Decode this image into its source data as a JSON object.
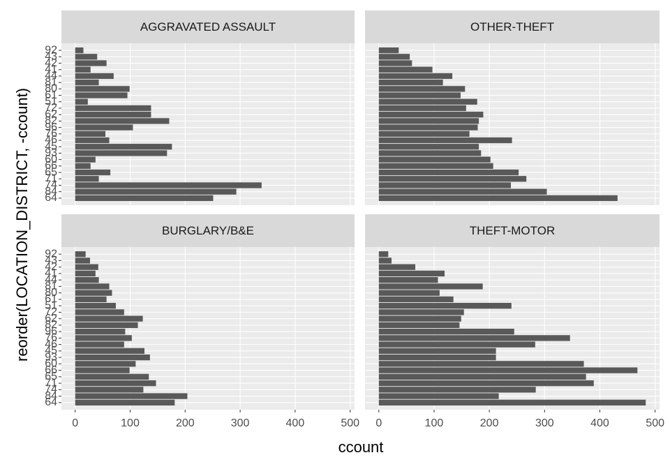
{
  "chart_data": {
    "type": "bar",
    "orientation": "horizontal",
    "x_label": "ccount",
    "y_label": "reorder(LOCATION_DISTRICT, -ccount)",
    "categories": [
      "64",
      "84",
      "74",
      "71",
      "65",
      "66",
      "60",
      "93",
      "45",
      "46",
      "76",
      "96",
      "82",
      "62",
      "72",
      "51",
      "61",
      "80",
      "81",
      "44",
      "41",
      "42",
      "43",
      "92"
    ],
    "color": "#595959",
    "grid": true,
    "xlim": [
      -25,
      508
    ],
    "xticks": [
      0,
      100,
      200,
      300,
      400,
      500
    ],
    "facets": [
      {
        "title": "AGGRAVATED ASSAULT",
        "values": [
          251,
          293,
          339,
          43,
          64,
          28,
          37,
          167,
          176,
          62,
          55,
          105,
          171,
          138,
          138,
          23,
          95,
          99,
          43,
          70,
          28,
          57,
          40,
          15
        ]
      },
      {
        "title": "OTHER-THEFT",
        "values": [
          432,
          304,
          239,
          267,
          253,
          207,
          202,
          185,
          181,
          241,
          164,
          179,
          181,
          189,
          158,
          178,
          148,
          156,
          116,
          133,
          97,
          60,
          56,
          36
        ]
      },
      {
        "title": "BURGLARY/B&E",
        "values": [
          181,
          204,
          124,
          147,
          134,
          99,
          110,
          136,
          126,
          89,
          103,
          91,
          114,
          123,
          89,
          74,
          57,
          67,
          62,
          43,
          37,
          42,
          27,
          19
        ]
      },
      {
        "title": "THEFT-MOTOR",
        "values": [
          483,
          217,
          284,
          389,
          375,
          468,
          371,
          212,
          212,
          283,
          346,
          245,
          146,
          149,
          154,
          240,
          135,
          110,
          188,
          107,
          119,
          66,
          23,
          17
        ]
      }
    ]
  }
}
